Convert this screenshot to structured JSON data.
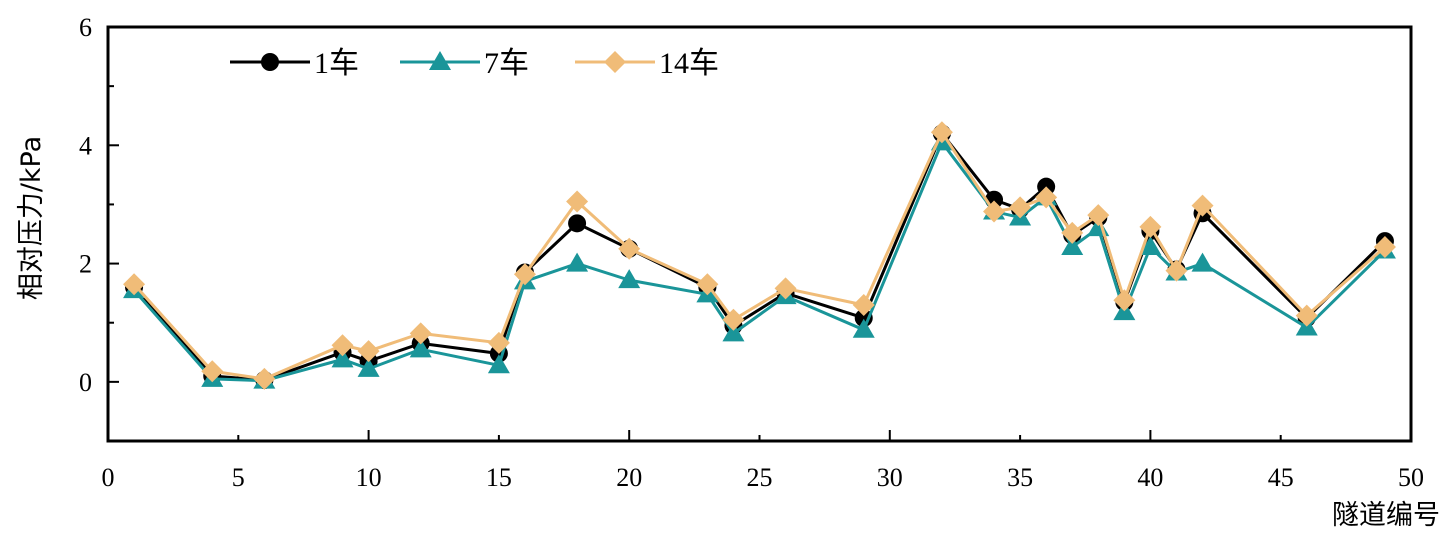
{
  "chart_data": {
    "type": "line",
    "title": "",
    "xlabel": "隧道编号",
    "ylabel": "相对压力/kPa",
    "xlim": [
      0,
      50
    ],
    "ylim": [
      -1,
      6
    ],
    "xticks": [
      "0",
      "5",
      "10",
      "15",
      "20",
      "25",
      "30",
      "35",
      "40",
      "45",
      "50"
    ],
    "yticks": [
      "0",
      "2",
      "4",
      "6"
    ],
    "grid": false,
    "legend_position": "top-left",
    "x": [
      1,
      4,
      6,
      9,
      10,
      12,
      15,
      16,
      18,
      20,
      23,
      24,
      26,
      29,
      32,
      34,
      35,
      36,
      37,
      38,
      39,
      40,
      41,
      42,
      46,
      49
    ],
    "series": [
      {
        "name": "1车",
        "color": "#000000",
        "marker": "circle",
        "values": [
          1.6,
          0.1,
          0.03,
          0.5,
          0.35,
          0.65,
          0.48,
          1.85,
          2.68,
          2.25,
          1.6,
          0.95,
          1.5,
          1.08,
          4.2,
          3.08,
          2.92,
          3.3,
          2.48,
          2.78,
          1.35,
          2.55,
          1.9,
          2.85,
          1.08,
          2.38
        ]
      },
      {
        "name": "7车",
        "color": "#1a9599",
        "marker": "triangle",
        "values": [
          1.55,
          0.05,
          0.02,
          0.38,
          0.22,
          0.55,
          0.28,
          1.7,
          2.0,
          1.72,
          1.48,
          0.82,
          1.45,
          0.88,
          4.05,
          2.88,
          2.78,
          3.12,
          2.28,
          2.6,
          1.18,
          2.28,
          1.85,
          2.0,
          0.92,
          2.22
        ]
      },
      {
        "name": "14车",
        "color": "#f0bc78",
        "marker": "diamond",
        "values": [
          1.65,
          0.18,
          0.05,
          0.62,
          0.52,
          0.82,
          0.66,
          1.82,
          3.05,
          2.25,
          1.65,
          1.05,
          1.58,
          1.3,
          4.22,
          2.88,
          2.95,
          3.12,
          2.52,
          2.82,
          1.38,
          2.62,
          1.88,
          2.98,
          1.12,
          2.28
        ]
      }
    ]
  }
}
